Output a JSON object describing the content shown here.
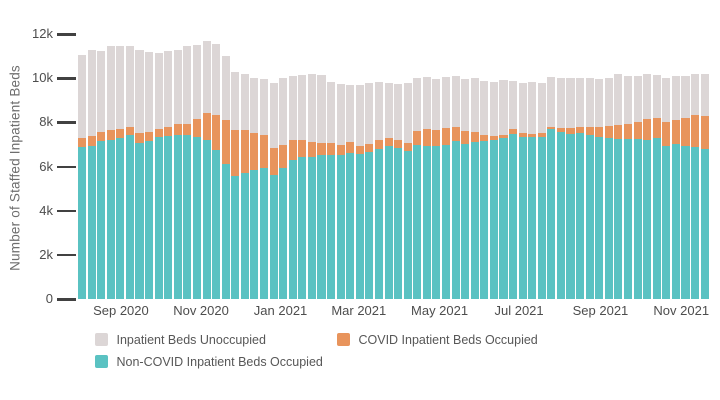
{
  "chart_data": {
    "type": "bar",
    "stacked": true,
    "title": "",
    "xlabel": "",
    "ylabel": "Number of Staffed Inpatient Beds",
    "ylim": [
      0,
      12000
    ],
    "grid": false,
    "legend_position": "bottom",
    "x_unit": "week",
    "n_bars": 66,
    "y_axis": {
      "ticks": [
        {
          "label": "12k",
          "value": 12000
        },
        {
          "label": "10k",
          "value": 10000
        },
        {
          "label": "8k",
          "value": 8000
        },
        {
          "label": "6k",
          "value": 6000
        },
        {
          "label": "4k",
          "value": 4000
        },
        {
          "label": "2k",
          "value": 2000
        },
        {
          "label": "0",
          "value": 0
        }
      ]
    },
    "x_axis": {
      "ticks": [
        {
          "label": "Sep 2020",
          "pos_pct": 6.8
        },
        {
          "label": "Nov 2020",
          "pos_pct": 19.5
        },
        {
          "label": "Jan 2021",
          "pos_pct": 32.1
        },
        {
          "label": "Mar 2021",
          "pos_pct": 44.5
        },
        {
          "label": "May 2021",
          "pos_pct": 57.3
        },
        {
          "label": "Jul 2021",
          "pos_pct": 69.9
        },
        {
          "label": "Sep 2021",
          "pos_pct": 82.8
        },
        {
          "label": "Nov 2021",
          "pos_pct": 95.6
        }
      ]
    },
    "series": [
      {
        "key": "non_covid",
        "name": "Non-COVID Inpatient Beds Occupied",
        "color": "#5ac2c2",
        "values": [
          6900,
          6930,
          7170,
          7215,
          7290,
          7410,
          7050,
          7155,
          7320,
          7395,
          7440,
          7410,
          7340,
          7220,
          6765,
          6130,
          5550,
          5700,
          5860,
          5950,
          5600,
          5950,
          6300,
          6430,
          6450,
          6500,
          6530,
          6540,
          6630,
          6585,
          6660,
          6810,
          6930,
          6840,
          6690,
          6960,
          6930,
          6915,
          6960,
          7155,
          7020,
          7125,
          7170,
          7215,
          7290,
          7470,
          7320,
          7350,
          7350,
          7700,
          7575,
          7470,
          7515,
          7425,
          7350,
          7290,
          7250,
          7250,
          7250,
          7200,
          7290,
          6950,
          7020,
          6950,
          6900,
          6800
        ]
      },
      {
        "key": "covid",
        "name": "COVID Inpatient Beds Occupied",
        "color": "#e8945c",
        "values": [
          390,
          470,
          405,
          420,
          405,
          390,
          450,
          420,
          375,
          375,
          480,
          510,
          805,
          1200,
          1555,
          1990,
          2100,
          1950,
          1660,
          1490,
          1250,
          1010,
          900,
          790,
          650,
          550,
          520,
          420,
          480,
          345,
          350,
          405,
          380,
          380,
          390,
          630,
          785,
          725,
          785,
          635,
          600,
          420,
          255,
          180,
          135,
          225,
          180,
          120,
          150,
          100,
          165,
          270,
          255,
          375,
          420,
          525,
          625,
          670,
          750,
          950,
          910,
          1050,
          1080,
          1250,
          1450,
          1500
        ]
      },
      {
        "key": "unoccupied",
        "name": "Inpatient Beds Unoccupied",
        "color": "#dcd6d6",
        "values": [
          3780,
          3880,
          3675,
          3810,
          3780,
          3675,
          3795,
          3615,
          3435,
          3480,
          3375,
          3555,
          3360,
          3280,
          3230,
          2880,
          2650,
          2550,
          2500,
          2510,
          2950,
          3030,
          2900,
          2930,
          3070,
          3090,
          2800,
          2790,
          2590,
          2770,
          2790,
          2635,
          2490,
          2500,
          2720,
          2400,
          2335,
          2310,
          2305,
          2310,
          2330,
          2445,
          2445,
          2430,
          2490,
          2175,
          2295,
          2355,
          2295,
          2250,
          2280,
          2250,
          2250,
          2190,
          2180,
          2205,
          2295,
          2180,
          2100,
          2020,
          1950,
          1990,
          2000,
          1900,
          1850,
          1900
        ]
      }
    ]
  },
  "legend": {
    "items": [
      {
        "label": "Inpatient Beds Unoccupied",
        "color": "#dcd6d6"
      },
      {
        "label": "COVID Inpatient Beds Occupied",
        "color": "#e8945c"
      },
      {
        "label": "Non-COVID Inpatient Beds Occupied",
        "color": "#5ac2c2"
      }
    ]
  },
  "colors": {
    "background": "#ffffff",
    "tick_label": "#4d4d4d",
    "axis_title": "#6e6e6e",
    "legend_text": "#575757",
    "tick_dash": "#414141"
  }
}
